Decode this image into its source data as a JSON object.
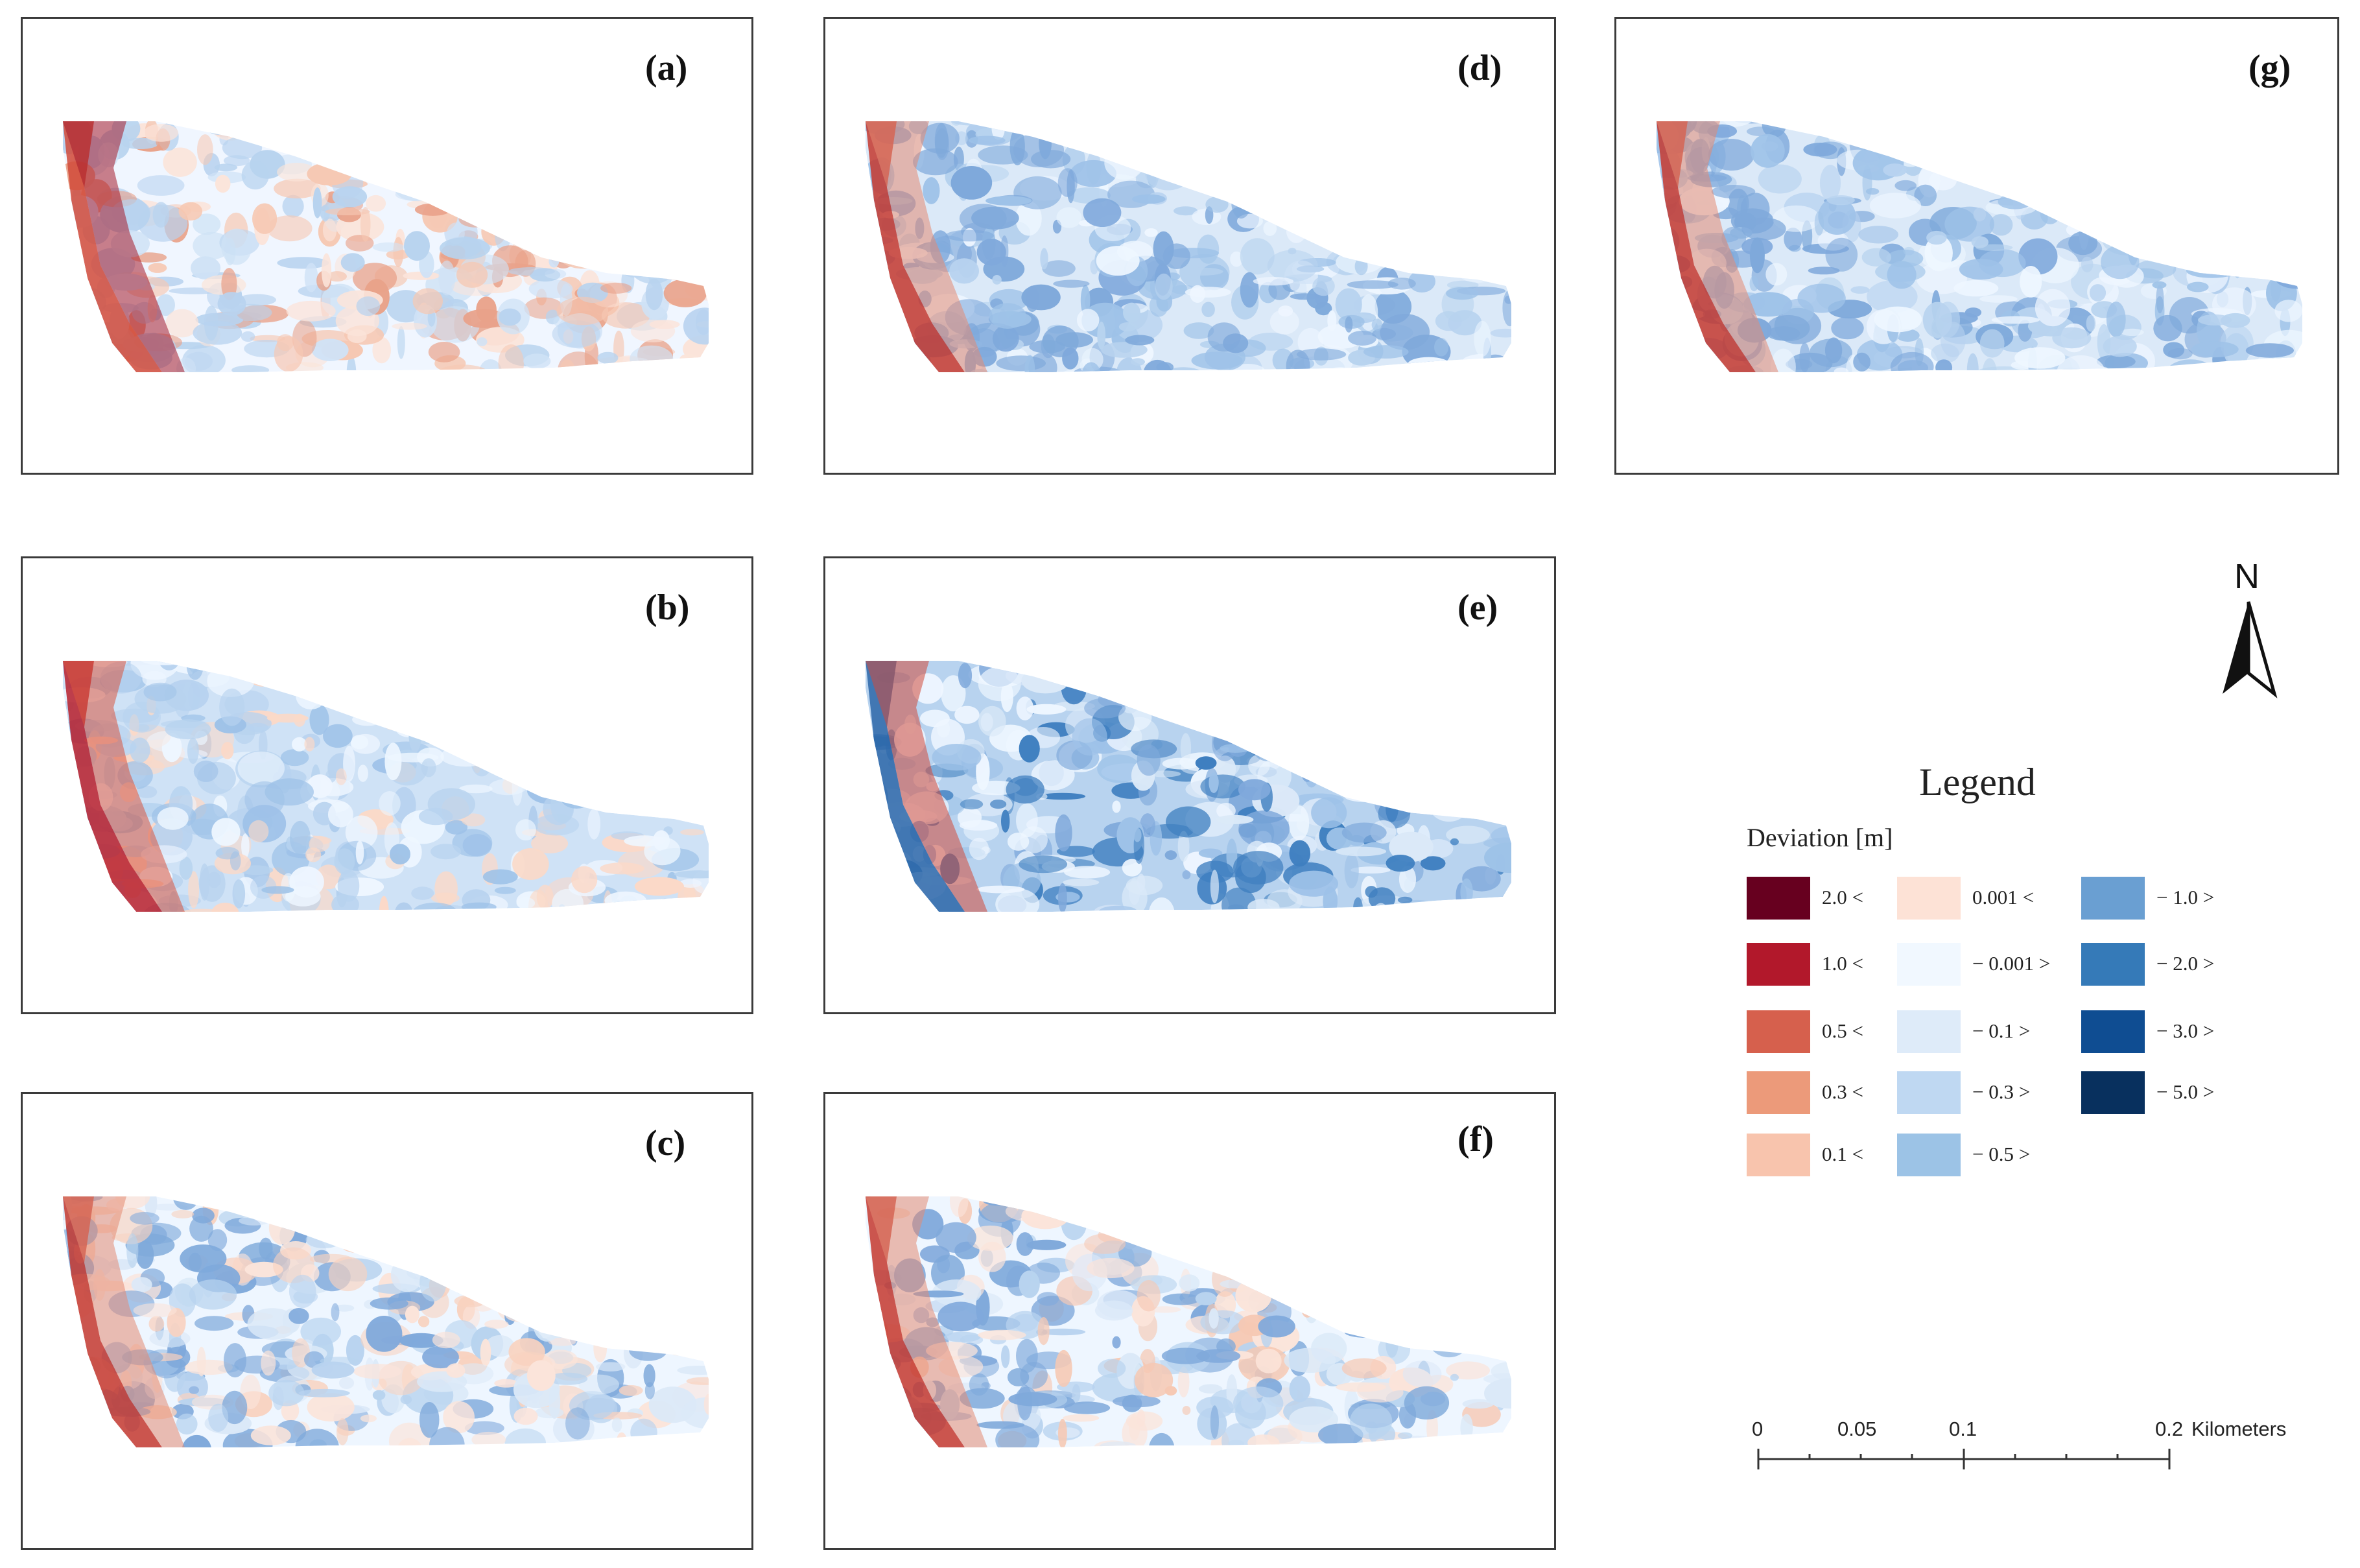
{
  "panels": [
    {
      "id": "a",
      "label": "(a)",
      "palette": [
        "#f0f6ff",
        "#fbe4da",
        "#f6c8b3",
        "#cfe2f6",
        "#e9a28a",
        "#b8d3ef"
      ],
      "west_edge": [
        "#d14a3a",
        "#a51c2c"
      ]
    },
    {
      "id": "b",
      "label": "(b)",
      "palette": [
        "#cfe2f6",
        "#9ec2e8",
        "#eef6ff",
        "#fbd9c8",
        "#b8d3ef"
      ],
      "west_edge": [
        "#b71f2b",
        "#d9553f"
      ]
    },
    {
      "id": "c",
      "label": "(c)",
      "palette": [
        "#eef6ff",
        "#dbe9f8",
        "#f8d2c0",
        "#b8d3ef",
        "#fbe4da",
        "#7fa9db"
      ],
      "west_edge": [
        "#c4382f",
        "#e48b72"
      ]
    },
    {
      "id": "d",
      "label": "(d)",
      "palette": [
        "#dbe9f8",
        "#b8d3ef",
        "#9ec2e8",
        "#eef6ff",
        "#7fa9db"
      ],
      "west_edge": [
        "#c4382f",
        "#e48b72"
      ]
    },
    {
      "id": "e",
      "label": "(e)",
      "palette": [
        "#b8d3ef",
        "#9ec2e8",
        "#dbe9f8",
        "#7fa9db",
        "#3f7fc0",
        "#eef6ff"
      ],
      "west_edge": [
        "#2b66a8",
        "#d14a3a"
      ]
    },
    {
      "id": "f",
      "label": "(f)",
      "palette": [
        "#eef6ff",
        "#dbe9f8",
        "#fbe4da",
        "#f6c8b3",
        "#b8d3ef",
        "#7fa9db"
      ],
      "west_edge": [
        "#c4382f",
        "#e48b72"
      ]
    },
    {
      "id": "g",
      "label": "(g)",
      "palette": [
        "#dbe9f8",
        "#b8d3ef",
        "#9ec2e8",
        "#eef6ff",
        "#7fa9db"
      ],
      "west_edge": [
        "#c4382f",
        "#e48b72"
      ]
    }
  ],
  "north_arrow": {
    "letter": "N"
  },
  "legend": {
    "title": "Legend",
    "subtitle": "Deviation [m]",
    "items": [
      {
        "label": "2.0 <",
        "color": "#67001f"
      },
      {
        "label": "1.0 <",
        "color": "#b2182b"
      },
      {
        "label": "0.5 <",
        "color": "#d6604d"
      },
      {
        "label": "0.3 <",
        "color": "#ec9a7a"
      },
      {
        "label": "0.1 <",
        "color": "#f8c4ad"
      },
      {
        "label": "0.001 <",
        "color": "#fde2d6"
      },
      {
        "label": "− 0.001 >",
        "color": "#f1f8ff"
      },
      {
        "label": "− 0.1 >",
        "color": "#deebf9"
      },
      {
        "label": "− 0.3 >",
        "color": "#bfd8f2"
      },
      {
        "label": "− 0.5 >",
        "color": "#9cc3e6"
      },
      {
        "label": "− 1.0 >",
        "color": "#6a9fd2"
      },
      {
        "label": "− 2.0 >",
        "color": "#357ab8"
      },
      {
        "label": "− 3.0 >",
        "color": "#0f4d92"
      },
      {
        "label": "− 5.0 >",
        "color": "#08305e"
      }
    ]
  },
  "scale_bar": {
    "ticks": [
      "0",
      "0.05",
      "0.1",
      "0.2"
    ],
    "unit": "Kilometers"
  }
}
